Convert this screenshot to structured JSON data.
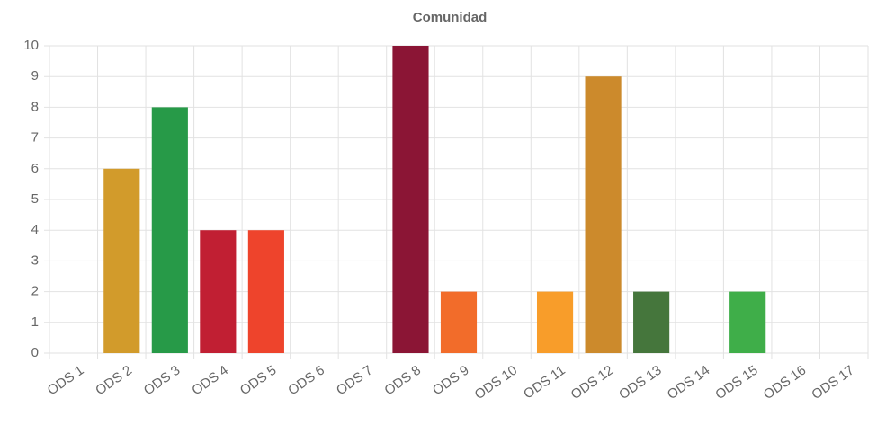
{
  "chart_data": {
    "type": "bar",
    "title": "Comunidad",
    "categories": [
      "ODS 1",
      "ODS 2",
      "ODS 3",
      "ODS 4",
      "ODS 5",
      "ODS 6",
      "ODS 7",
      "ODS 8",
      "ODS 9",
      "ODS 10",
      "ODS 11",
      "ODS 12",
      "ODS 13",
      "ODS 14",
      "ODS 15",
      "ODS 16",
      "ODS 17"
    ],
    "values": [
      0,
      6,
      8,
      4,
      4,
      0,
      0,
      10,
      2,
      0,
      2,
      9,
      2,
      0,
      2,
      0,
      0
    ],
    "colors": [
      "#e5243b",
      "#d29b2b",
      "#279a48",
      "#c11f33",
      "#ee442c",
      "#26bde2",
      "#fcc30b",
      "#8b1535",
      "#f26c2a",
      "#dd1367",
      "#f89d2a",
      "#cc8a2c",
      "#45763c",
      "#0a97d9",
      "#3fae49",
      "#00689d",
      "#19486a"
    ],
    "ylim": [
      0,
      10
    ],
    "yticks": [
      0,
      1,
      2,
      3,
      4,
      5,
      6,
      7,
      8,
      9,
      10
    ],
    "grid": true
  }
}
